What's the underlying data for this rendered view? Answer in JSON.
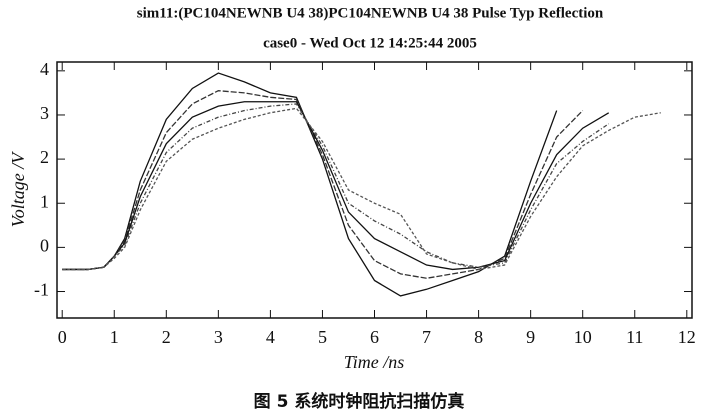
{
  "chart_data": {
    "type": "line",
    "title": "sim11:(PC104NEWNB U4 38)PC104NEWNB U4 38 Pulse Typ Reflection",
    "subtitle": "case0 - Wed Oct 12 14:25:44 2005",
    "x_label": "Time /ns",
    "y_label": "Voltage /V",
    "caption": "图 5 系统时钟阻抗扫描仿真",
    "x": [
      0,
      0.5,
      0.8,
      1,
      1.2,
      1.5,
      2,
      2.5,
      3,
      3.5,
      4,
      4.5,
      5,
      5.5,
      6,
      6.5,
      7,
      7.5,
      8,
      8.5,
      9,
      9.5,
      10,
      10.5,
      11,
      11.5
    ],
    "series": [
      {
        "color": "#111111",
        "values": [
          -0.5,
          -0.5,
          -0.45,
          -0.2,
          0.2,
          1.5,
          2.9,
          3.6,
          3.95,
          3.75,
          3.5,
          3.4,
          2.0,
          0.2,
          -0.75,
          -1.1,
          -0.95,
          -0.75,
          -0.55,
          -0.2,
          1.5,
          3.1,
          null,
          null,
          null,
          null
        ]
      },
      {
        "color": "#333333",
        "values": [
          -0.5,
          -0.5,
          -0.45,
          -0.2,
          0.15,
          1.3,
          2.6,
          3.25,
          3.55,
          3.5,
          3.4,
          3.35,
          2.1,
          0.5,
          -0.3,
          -0.6,
          -0.7,
          -0.6,
          -0.5,
          -0.25,
          1.2,
          2.5,
          3.1,
          null,
          null,
          null
        ]
      },
      {
        "color": "#111111",
        "values": [
          -0.5,
          -0.5,
          -0.45,
          -0.2,
          0.1,
          1.15,
          2.35,
          2.95,
          3.2,
          3.3,
          3.3,
          3.3,
          2.2,
          0.8,
          0.2,
          -0.1,
          -0.4,
          -0.5,
          -0.45,
          -0.3,
          1.0,
          2.1,
          2.7,
          3.05,
          null,
          null
        ]
      },
      {
        "color": "#444444",
        "values": [
          -0.5,
          -0.5,
          -0.45,
          -0.2,
          0.05,
          1.0,
          2.15,
          2.7,
          2.95,
          3.1,
          3.2,
          3.25,
          2.3,
          1.0,
          0.6,
          0.3,
          -0.1,
          -0.35,
          -0.45,
          -0.35,
          0.85,
          1.9,
          2.4,
          2.8,
          null,
          null
        ]
      },
      {
        "color": "#555555",
        "values": [
          -0.5,
          -0.5,
          -0.45,
          -0.25,
          0.0,
          0.85,
          1.95,
          2.45,
          2.7,
          2.9,
          3.05,
          3.15,
          2.4,
          1.3,
          1.0,
          0.75,
          -0.15,
          -0.35,
          -0.5,
          -0.4,
          0.7,
          1.6,
          2.3,
          2.65,
          2.95,
          3.05
        ]
      }
    ],
    "xlim": [
      -0.1,
      12.1
    ],
    "xticks": [
      0,
      1,
      2,
      3,
      4,
      5,
      6,
      7,
      8,
      9,
      10,
      11,
      12
    ],
    "ylim": [
      -1.6,
      4.2
    ],
    "yticks": [
      -1,
      0,
      1,
      2,
      3,
      4
    ],
    "grid": false
  }
}
